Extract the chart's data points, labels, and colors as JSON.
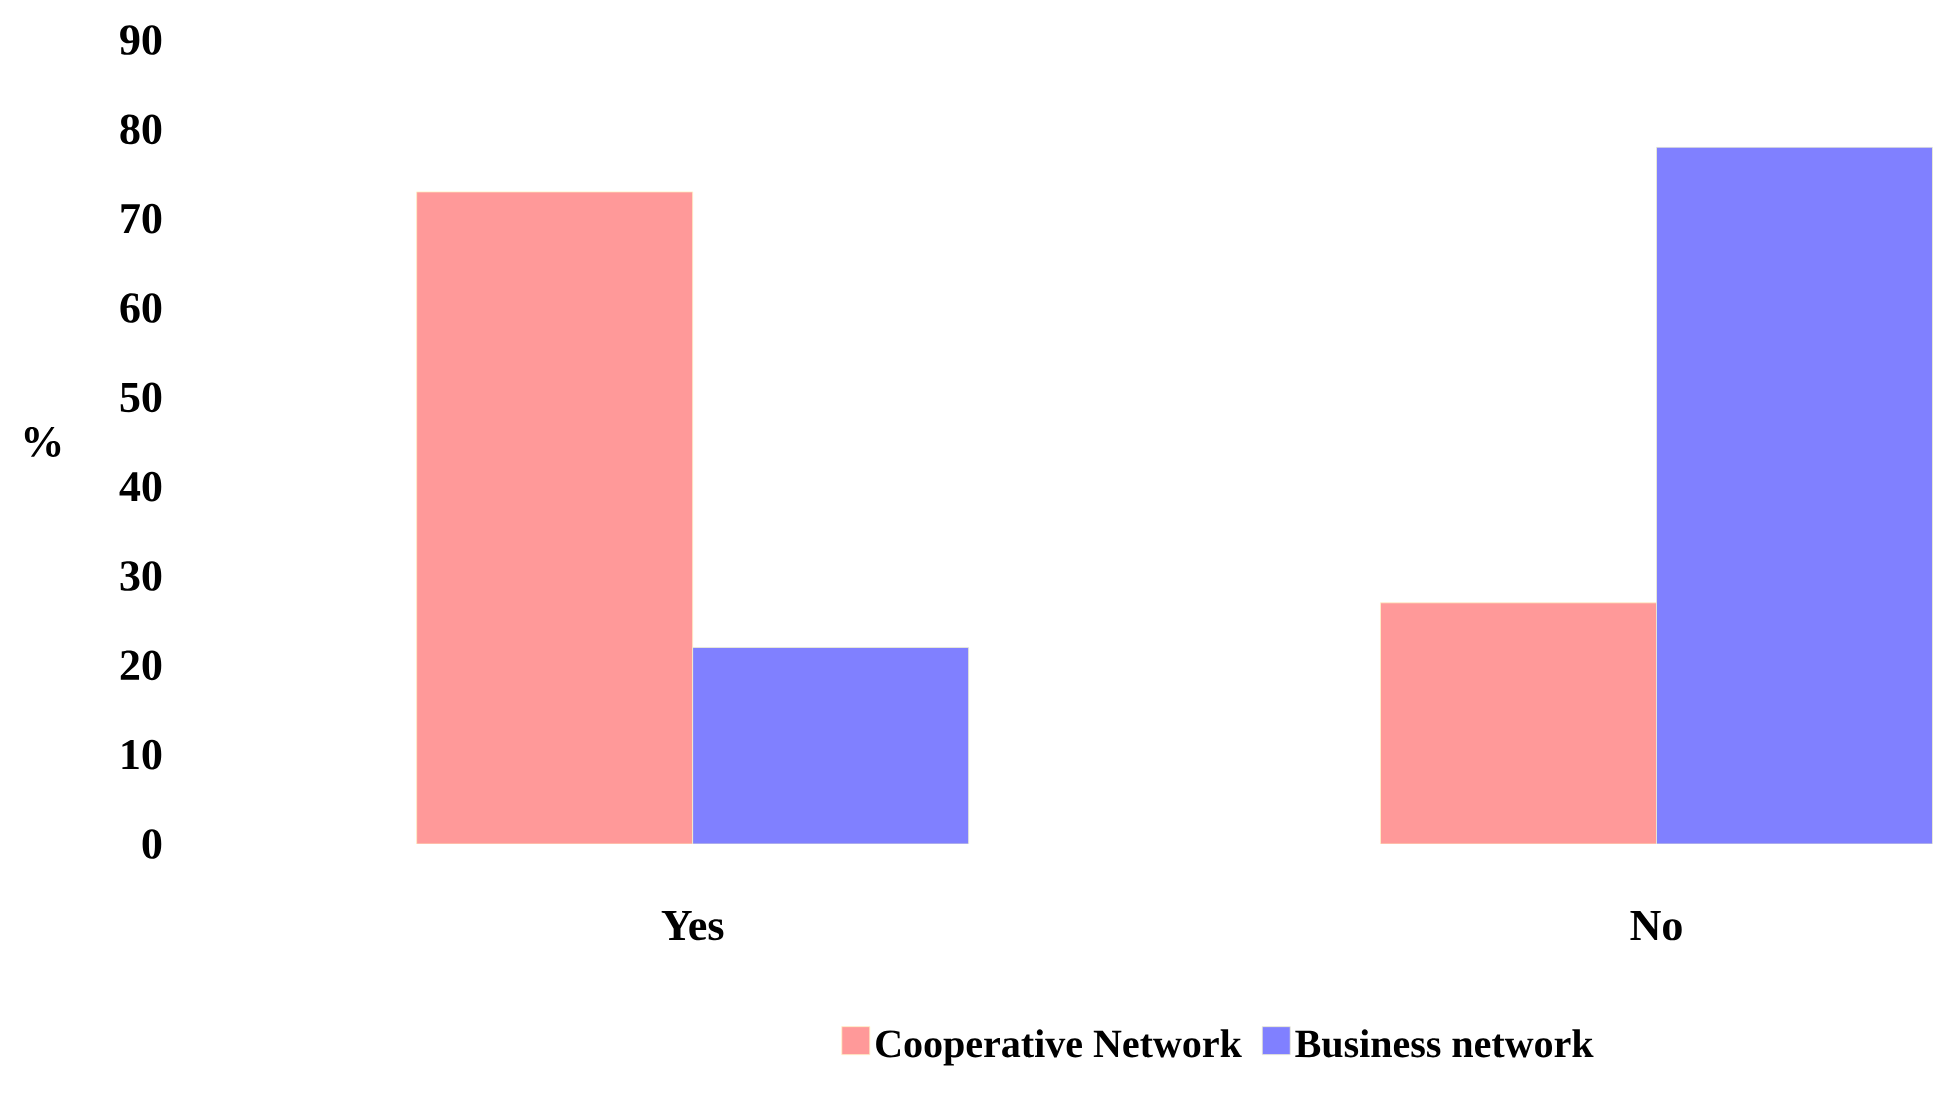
{
  "chart_data": {
    "type": "bar",
    "ylabel": "%",
    "categories": [
      "Yes",
      "No"
    ],
    "series": [
      {
        "name": "Cooperative Network",
        "color": "#ff9999",
        "values": [
          73,
          27
        ]
      },
      {
        "name": "Business network",
        "color": "#8080ff",
        "values": [
          22,
          78
        ]
      }
    ],
    "ylim": [
      0,
      90
    ],
    "yticks": [
      0,
      10,
      20,
      30,
      40,
      50,
      60,
      70,
      80,
      90
    ],
    "legend": "bottom"
  }
}
